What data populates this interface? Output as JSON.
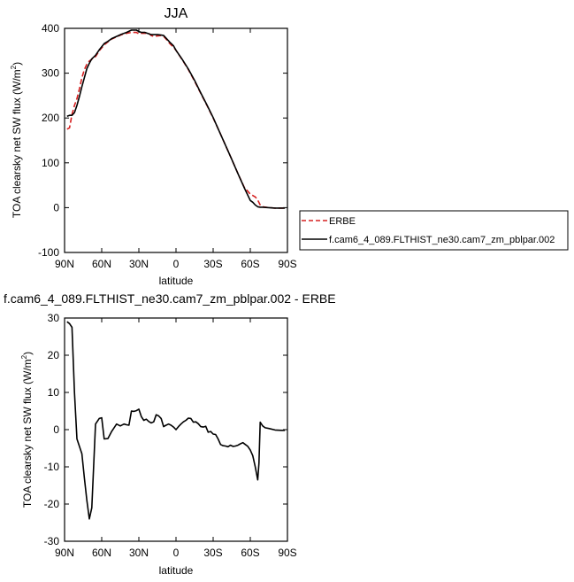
{
  "chart_data": [
    {
      "type": "line",
      "title": "JJA",
      "xlabel": "latitude",
      "ylabel_main": "TOA clearsky net SW flux (W/m",
      "ylabel_sup": "2",
      "ylabel_close": ")",
      "xlim": [
        90,
        -90
      ],
      "ylim": [
        -100,
        400
      ],
      "xticks": [
        90,
        60,
        30,
        0,
        -30,
        -60,
        -90
      ],
      "xtick_labels": [
        "90N",
        "60N",
        "30N",
        "0",
        "30S",
        "60S",
        "90S"
      ],
      "yticks": [
        -100,
        0,
        100,
        200,
        300,
        400
      ],
      "ytick_labels": [
        "-100",
        "0",
        "100",
        "200",
        "300",
        "400"
      ],
      "legend": {
        "placement": "right",
        "entries": [
          "ERBE",
          "f.cam6_4_089.FLTHIST_ne30.cam7_zm_pblpar.002"
        ]
      },
      "series": [
        {
          "name": "ERBE",
          "color": "#d62020",
          "dash": "dashed",
          "x": [
            88,
            86,
            84,
            82,
            80,
            78,
            76,
            74,
            72,
            70,
            68,
            65,
            62,
            58,
            55,
            52,
            48,
            44,
            40,
            36,
            32,
            30,
            28,
            25,
            22,
            20,
            18,
            15,
            12,
            10,
            8,
            5,
            2,
            0,
            -5,
            -10,
            -15,
            -20,
            -25,
            -30,
            -35,
            -40,
            -45,
            -50,
            -55,
            -60,
            -62,
            -64,
            -66,
            -68,
            -70,
            -75,
            -80,
            -85,
            -88
          ],
          "y": [
            175,
            178,
            208,
            228,
            243,
            265,
            290,
            308,
            320,
            327,
            331,
            337,
            350,
            363,
            370,
            376,
            381,
            386,
            389,
            391,
            391,
            388,
            389,
            389,
            389,
            384,
            382,
            383,
            384,
            382,
            376,
            366,
            358,
            351,
            330,
            308,
            282,
            255,
            228,
            200,
            170,
            139,
            108,
            76,
            46,
            30,
            27,
            24,
            17,
            6,
            2,
            0,
            -1,
            -1,
            -1
          ]
        },
        {
          "name": "f.cam6_4_089.FLTHIST_ne30.cam7_zm_pblpar.002",
          "color": "#000000",
          "dash": "solid",
          "x": [
            88,
            86,
            84,
            82,
            80,
            78,
            76,
            74,
            72,
            70,
            68,
            65,
            62,
            58,
            55,
            52,
            48,
            44,
            40,
            36,
            32,
            30,
            28,
            25,
            22,
            20,
            18,
            15,
            12,
            10,
            8,
            5,
            2,
            0,
            -5,
            -10,
            -15,
            -20,
            -25,
            -30,
            -35,
            -40,
            -45,
            -50,
            -55,
            -60,
            -62,
            -64,
            -66,
            -68,
            -70,
            -75,
            -80,
            -85,
            -88
          ],
          "y": [
            204,
            206,
            206,
            212,
            228,
            248,
            270,
            290,
            310,
            322,
            332,
            340,
            352,
            366,
            371,
            377,
            382,
            387,
            391,
            396,
            396,
            393,
            391,
            391,
            388,
            386,
            386,
            386,
            385,
            384,
            378,
            369,
            361,
            351,
            331,
            309,
            284,
            256,
            229,
            201,
            170,
            139,
            108,
            76,
            45,
            16,
            12,
            6,
            2,
            1,
            1,
            0,
            -1,
            -1,
            -1
          ]
        }
      ]
    },
    {
      "type": "line",
      "title": "f.cam6_4_089.FLTHIST_ne30.cam7_zm_pblpar.002 - ERBE",
      "xlabel": "latitude",
      "ylabel_main": "TOA clearsky net SW flux (W/m",
      "ylabel_sup": "2",
      "ylabel_close": ")",
      "xlim": [
        90,
        -90
      ],
      "ylim": [
        -30,
        30
      ],
      "xticks": [
        90,
        60,
        30,
        0,
        -30,
        -60,
        -90
      ],
      "xtick_labels": [
        "90N",
        "60N",
        "30N",
        "0",
        "30S",
        "60S",
        "90S"
      ],
      "yticks": [
        -30,
        -20,
        -10,
        0,
        10,
        20,
        30
      ],
      "ytick_labels": [
        "-30",
        "-20",
        "-10",
        "0",
        "10",
        "20",
        "30"
      ],
      "series": [
        {
          "color": "#000000",
          "dash": "solid",
          "x": [
            88,
            86,
            84,
            82,
            80,
            78,
            76,
            74,
            72,
            70,
            68,
            65,
            62,
            60,
            58,
            55,
            52,
            48,
            45,
            42,
            40,
            38,
            36,
            34,
            32,
            30,
            28,
            26,
            24,
            22,
            20,
            18,
            16,
            14,
            12,
            10,
            8,
            6,
            4,
            2,
            0,
            -2,
            -4,
            -6,
            -8,
            -10,
            -12,
            -14,
            -16,
            -18,
            -20,
            -22,
            -24,
            -26,
            -28,
            -30,
            -32,
            -34,
            -36,
            -38,
            -40,
            -42,
            -44,
            -46,
            -48,
            -50,
            -52,
            -54,
            -56,
            -58,
            -60,
            -62,
            -64,
            -66,
            -67,
            -68,
            -70,
            -72,
            -75,
            -80,
            -85,
            -88
          ],
          "y": [
            29,
            28.5,
            27.5,
            10,
            -2.5,
            -4.5,
            -6.5,
            -13,
            -19,
            -24,
            -21,
            1.5,
            3,
            3.2,
            -2.5,
            -2.4,
            -0.5,
            1.5,
            1,
            1.5,
            1.3,
            1.2,
            5,
            4.9,
            5.1,
            5.5,
            3.5,
            2.5,
            2.8,
            2.2,
            1.8,
            2.1,
            4,
            3.7,
            3,
            0.8,
            1.2,
            1.5,
            1.2,
            0.7,
            0,
            0.8,
            1.5,
            2.1,
            2.5,
            3.1,
            3,
            2,
            2.1,
            1.6,
            0.8,
            0.7,
            0.9,
            -0.7,
            -0.5,
            -1.2,
            -1.3,
            -2.5,
            -4,
            -4.3,
            -4.4,
            -4.6,
            -4.2,
            -4.5,
            -4.4,
            -4.2,
            -3.8,
            -3.5,
            -4,
            -4.5,
            -5.5,
            -7,
            -10,
            -13.5,
            -9,
            2,
            1,
            0.5,
            0.3,
            -0.1,
            -0.2,
            -0.2
          ]
        }
      ]
    }
  ]
}
